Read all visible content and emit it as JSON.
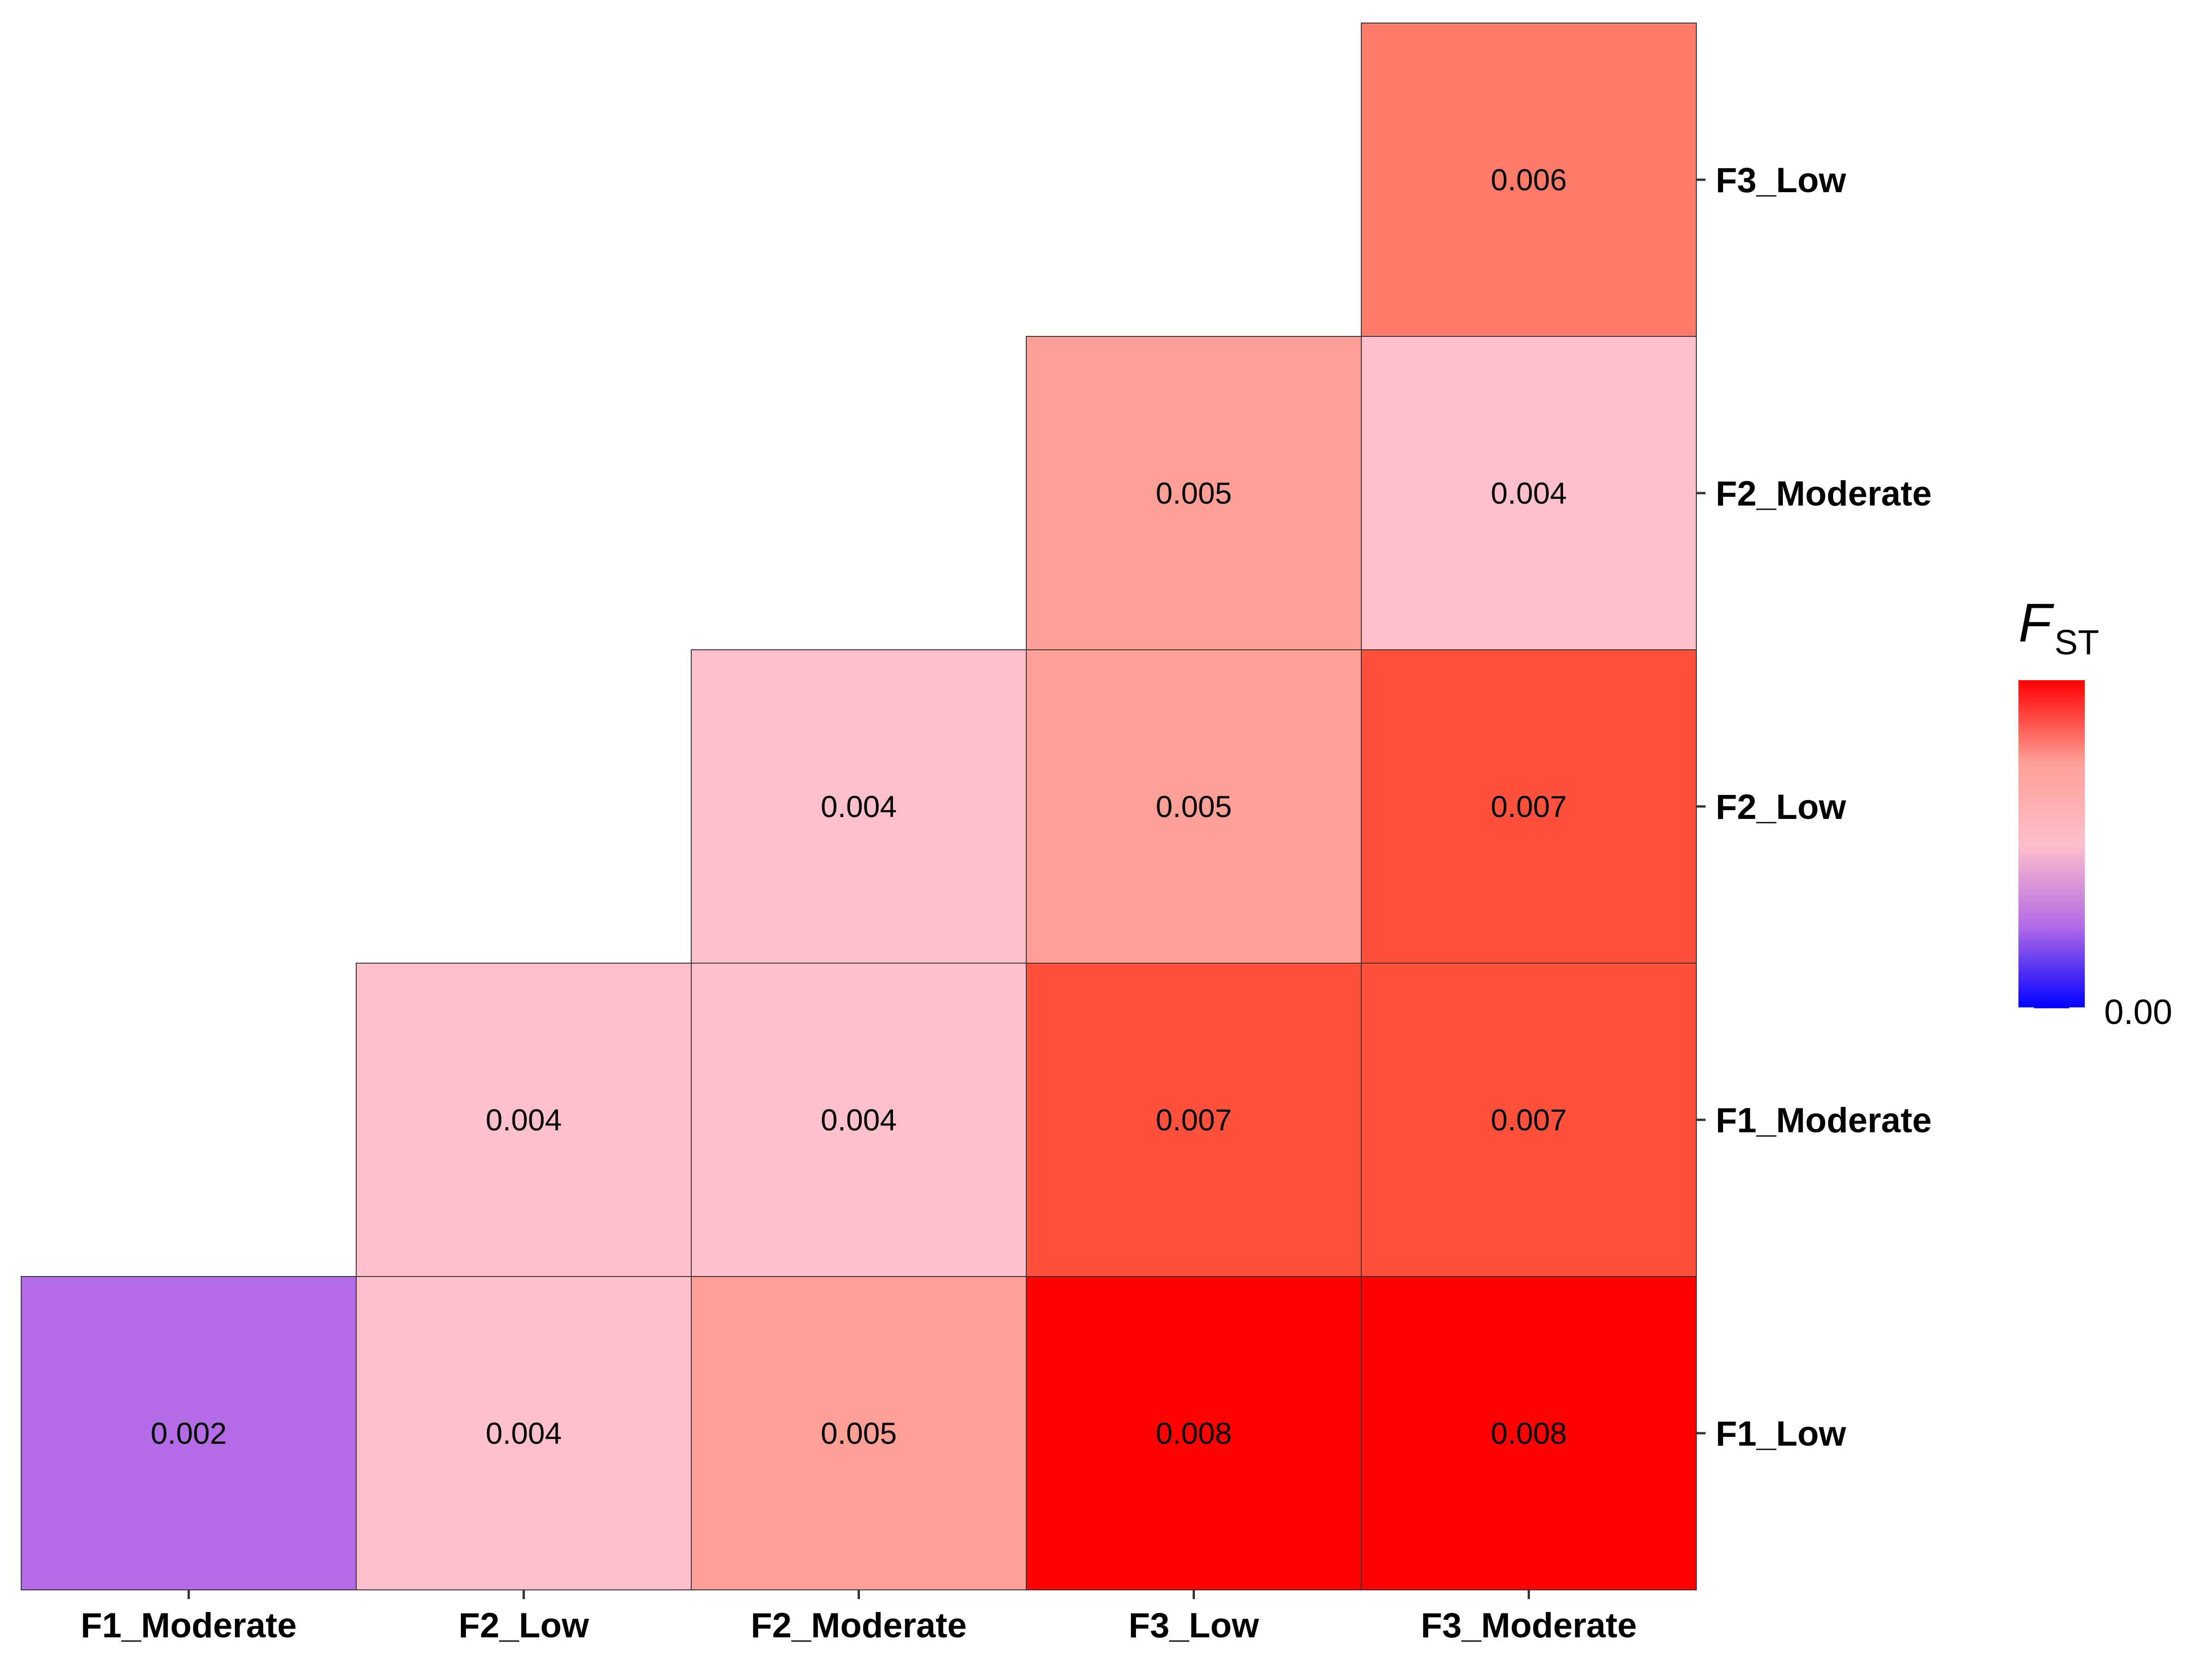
{
  "chart_data": {
    "type": "heatmap",
    "x_categories": [
      "F1_Moderate",
      "F2_Low",
      "F2_Moderate",
      "F3_Low",
      "F3_Moderate"
    ],
    "y_categories": [
      "F1_Low",
      "F1_Moderate",
      "F2_Low",
      "F2_Moderate",
      "F3_Low"
    ],
    "cells": [
      {
        "x": "F1_Moderate",
        "y": "F1_Low",
        "value": 0.002,
        "label": "0.002"
      },
      {
        "x": "F2_Low",
        "y": "F1_Low",
        "value": 0.004,
        "label": "0.004"
      },
      {
        "x": "F2_Moderate",
        "y": "F1_Low",
        "value": 0.005,
        "label": "0.005"
      },
      {
        "x": "F3_Low",
        "y": "F1_Low",
        "value": 0.008,
        "label": "0.008"
      },
      {
        "x": "F3_Moderate",
        "y": "F1_Low",
        "value": 0.008,
        "label": "0.008"
      },
      {
        "x": "F2_Low",
        "y": "F1_Moderate",
        "value": 0.004,
        "label": "0.004"
      },
      {
        "x": "F2_Moderate",
        "y": "F1_Moderate",
        "value": 0.004,
        "label": "0.004"
      },
      {
        "x": "F3_Low",
        "y": "F1_Moderate",
        "value": 0.007,
        "label": "0.007"
      },
      {
        "x": "F3_Moderate",
        "y": "F1_Moderate",
        "value": 0.007,
        "label": "0.007"
      },
      {
        "x": "F2_Moderate",
        "y": "F2_Low",
        "value": 0.004,
        "label": "0.004"
      },
      {
        "x": "F3_Low",
        "y": "F2_Low",
        "value": 0.005,
        "label": "0.005"
      },
      {
        "x": "F3_Moderate",
        "y": "F2_Low",
        "value": 0.007,
        "label": "0.007"
      },
      {
        "x": "F3_Low",
        "y": "F2_Moderate",
        "value": 0.005,
        "label": "0.005"
      },
      {
        "x": "F3_Moderate",
        "y": "F2_Moderate",
        "value": 0.004,
        "label": "0.004"
      },
      {
        "x": "F3_Moderate",
        "y": "F3_Low",
        "value": 0.006,
        "label": "0.006"
      }
    ],
    "value_colors": {
      "0.002": "#b36be6",
      "0.004": "#ffbfcb",
      "0.005": "#ff9f96",
      "0.006": "#ff7b69",
      "0.007": "#ff513b",
      "0.008": "#ff0000"
    },
    "legend": {
      "title_main": "F",
      "title_sub": "ST",
      "tick_label": "0.00",
      "gradient_colors": [
        "#0000ff",
        "#b36be6",
        "#ffbfcb",
        "#ff9f96",
        "#ff0000"
      ],
      "placement": "right"
    },
    "grid": false
  }
}
